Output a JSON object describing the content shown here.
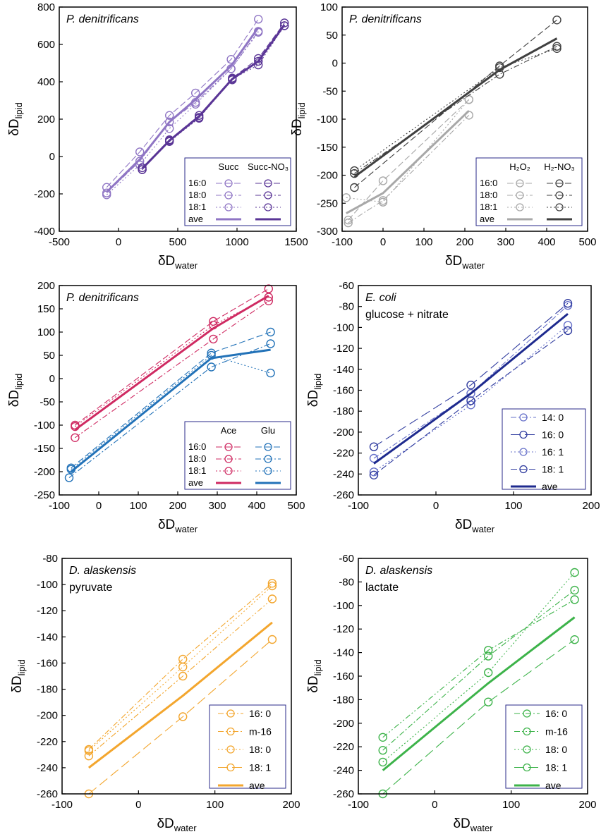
{
  "figure": {
    "xlabel_main": "δD",
    "xlabel_sub": "water",
    "ylabel_main": "δD",
    "ylabel_sub": "lipid"
  },
  "chart_data": [
    {
      "id": "p1",
      "type": "line",
      "title": "P. denitrificans",
      "subtitle": "",
      "xlim": [
        -500,
        1500
      ],
      "ylim": [
        -400,
        800
      ],
      "xticks": [
        -500,
        0,
        500,
        1000,
        1500
      ],
      "yticks": [
        -400,
        -200,
        0,
        200,
        400,
        600,
        800
      ],
      "legend": {
        "position": "bottom-right",
        "headers": [
          "Succ",
          "Succ-NO₃"
        ],
        "rows": [
          "16:0",
          "18:0",
          "18:1",
          "ave"
        ]
      },
      "series": [
        {
          "name": "16:0 Succ",
          "group": "Succ",
          "style": "dash",
          "color": "#8f75c4",
          "x": [
            -100,
            180,
            430,
            650,
            950,
            1180
          ],
          "y": [
            -165,
            25,
            220,
            340,
            520,
            735
          ]
        },
        {
          "name": "18:0 Succ",
          "group": "Succ",
          "style": "dashdot",
          "color": "#8f75c4",
          "x": [
            -100,
            180,
            430,
            650,
            950,
            1180
          ],
          "y": [
            -195,
            -25,
            185,
            290,
            470,
            670
          ]
        },
        {
          "name": "18:1 Succ",
          "group": "Succ",
          "style": "dot",
          "color": "#8f75c4",
          "x": [
            -100,
            180,
            430,
            650,
            950,
            1180
          ],
          "y": [
            -205,
            -45,
            150,
            280,
            470,
            665
          ]
        },
        {
          "name": "16:0 Succ-NO3",
          "group": "Succ-NO3",
          "style": "dash",
          "color": "#5a3596",
          "x": [
            200,
            430,
            680,
            960,
            1180,
            1400
          ],
          "y": [
            -60,
            90,
            220,
            420,
            525,
            715
          ]
        },
        {
          "name": "18:0 Succ-NO3",
          "group": "Succ-NO3",
          "style": "dashdot",
          "color": "#5a3596",
          "x": [
            200,
            430,
            680,
            960,
            1180,
            1400
          ],
          "y": [
            -70,
            85,
            210,
            410,
            510,
            700
          ]
        },
        {
          "name": "18:1 Succ-NO3",
          "group": "Succ-NO3",
          "style": "dot",
          "color": "#5a3596",
          "x": [
            200,
            430,
            680,
            960,
            1180,
            1400
          ],
          "y": [
            -70,
            80,
            205,
            415,
            490,
            700
          ]
        },
        {
          "name": "ave Succ",
          "group": "Succ",
          "style": "solid",
          "color": "#8f75c4",
          "x": [
            -100,
            180,
            430,
            650,
            950,
            1180
          ],
          "y": [
            -190,
            -15,
            185,
            305,
            485,
            690
          ]
        },
        {
          "name": "ave Succ-NO3",
          "group": "Succ-NO3",
          "style": "solid",
          "color": "#5a3596",
          "x": [
            200,
            430,
            680,
            960,
            1180,
            1400
          ],
          "y": [
            -65,
            85,
            215,
            415,
            510,
            705
          ]
        }
      ]
    },
    {
      "id": "p2",
      "type": "line",
      "title": "P. denitrificans",
      "subtitle": "",
      "xlim": [
        -100,
        500
      ],
      "ylim": [
        -300,
        100
      ],
      "xticks": [
        -100,
        0,
        100,
        200,
        300,
        400,
        500
      ],
      "yticks": [
        -300,
        -250,
        -200,
        -150,
        -100,
        -50,
        0,
        50,
        100
      ],
      "legend": {
        "position": "bottom-right",
        "headers": [
          "H₂O₂",
          "H₂-NO₃"
        ],
        "rows": [
          "16:0",
          "18:0",
          "18:1",
          "ave"
        ]
      },
      "series": [
        {
          "name": "16:0 H2O2",
          "group": "H2O2",
          "style": "dash",
          "color": "#a8a8a8",
          "x": [
            -85,
            0,
            210
          ],
          "y": [
            -280,
            -210,
            -65
          ]
        },
        {
          "name": "18:0 H2O2",
          "group": "H2O2",
          "style": "dashdot",
          "color": "#a8a8a8",
          "x": [
            -85,
            0,
            210
          ],
          "y": [
            -285,
            -245,
            -93
          ]
        },
        {
          "name": "18:1 H2O2",
          "group": "H2O2",
          "style": "dot",
          "color": "#a8a8a8",
          "x": [
            -90,
            0,
            210
          ],
          "y": [
            -240,
            -248,
            -65
          ]
        },
        {
          "name": "16:0 H2-NO3",
          "group": "H2-NO3",
          "style": "dash",
          "color": "#404040",
          "x": [
            -70,
            285,
            425
          ],
          "y": [
            -222,
            -5,
            77
          ]
        },
        {
          "name": "18:0 H2-NO3",
          "group": "H2-NO3",
          "style": "dashdot",
          "color": "#404040",
          "x": [
            -70,
            285,
            425
          ],
          "y": [
            -197,
            -20,
            30
          ]
        },
        {
          "name": "18:1 H2-NO3",
          "group": "H2-NO3",
          "style": "dot",
          "color": "#404040",
          "x": [
            -70,
            285,
            425
          ],
          "y": [
            -192,
            -8,
            26
          ]
        },
        {
          "name": "ave H2O2",
          "group": "H2O2",
          "style": "solid",
          "color": "#a8a8a8",
          "x": [
            -90,
            0,
            210
          ],
          "y": [
            -268,
            -232,
            -85
          ]
        },
        {
          "name": "ave H2-NO3",
          "group": "H2-NO3",
          "style": "solid",
          "color": "#404040",
          "x": [
            -70,
            285,
            425
          ],
          "y": [
            -203,
            -12,
            44
          ]
        }
      ]
    },
    {
      "id": "p3",
      "type": "line",
      "title": "P. denitrificans",
      "subtitle": "",
      "xlim": [
        -100,
        500
      ],
      "ylim": [
        -250,
        200
      ],
      "xticks": [
        -100,
        0,
        100,
        200,
        300,
        400,
        500
      ],
      "yticks": [
        -250,
        -200,
        -150,
        -100,
        -50,
        0,
        50,
        100,
        150,
        200
      ],
      "legend": {
        "position": "bottom-right",
        "headers": [
          "Ace",
          "Glu"
        ],
        "rows": [
          "16:0",
          "18:0",
          "18:1",
          "ave"
        ]
      },
      "series": [
        {
          "name": "16:0 Ace",
          "group": "Ace",
          "style": "dash",
          "color": "#cf2a62",
          "x": [
            -60,
            290,
            430
          ],
          "y": [
            -100,
            123,
            193
          ]
        },
        {
          "name": "18:0 Ace",
          "group": "Ace",
          "style": "dashdot",
          "color": "#cf2a62",
          "x": [
            -60,
            290,
            430
          ],
          "y": [
            -127,
            85,
            167
          ]
        },
        {
          "name": "18:1 Ace",
          "group": "Ace",
          "style": "dot",
          "color": "#cf2a62",
          "x": [
            -60,
            290,
            430
          ],
          "y": [
            -103,
            115,
            175
          ]
        },
        {
          "name": "16:0 Glu",
          "group": "Glu",
          "style": "dash",
          "color": "#2272b8",
          "x": [
            -70,
            285,
            435
          ],
          "y": [
            -192,
            55,
            100
          ]
        },
        {
          "name": "18:0 Glu",
          "group": "Glu",
          "style": "dashdot",
          "color": "#2272b8",
          "x": [
            -75,
            285,
            435
          ],
          "y": [
            -213,
            25,
            75
          ]
        },
        {
          "name": "18:1 Glu",
          "group": "Glu",
          "style": "dot",
          "color": "#2272b8",
          "x": [
            -70,
            285,
            435
          ],
          "y": [
            -195,
            50,
            12
          ]
        },
        {
          "name": "ave Ace",
          "group": "Ace",
          "style": "solid",
          "color": "#cf2a62",
          "x": [
            -60,
            290,
            430
          ],
          "y": [
            -110,
            108,
            178
          ]
        },
        {
          "name": "ave Glu",
          "group": "Glu",
          "style": "solid",
          "color": "#2272b8",
          "x": [
            -70,
            285,
            435
          ],
          "y": [
            -200,
            44,
            62
          ]
        }
      ]
    },
    {
      "id": "p4",
      "type": "line",
      "title": "E. coli",
      "subtitle": "glucose + nitrate",
      "xlim": [
        -100,
        200
      ],
      "ylim": [
        -260,
        -60
      ],
      "xticks": [
        -100,
        0,
        100,
        200
      ],
      "yticks": [
        -260,
        -240,
        -220,
        -200,
        -180,
        -160,
        -140,
        -120,
        -100,
        -80,
        -60
      ],
      "legend": {
        "position": "bottom-right",
        "headers": [],
        "rows": [
          "14: 0",
          "16: 0",
          "16: 1",
          "18: 1",
          "ave"
        ]
      },
      "series": [
        {
          "name": "14: 0",
          "style": "dashdot",
          "color": "#6670c9",
          "x": [
            -80,
            45,
            170
          ],
          "y": [
            -225,
            -163,
            -79
          ]
        },
        {
          "name": "16: 0",
          "style": "longdash",
          "color": "#2e3a9e",
          "x": [
            -80,
            45,
            170
          ],
          "y": [
            -214,
            -155,
            -77
          ]
        },
        {
          "name": "16: 1",
          "style": "dot",
          "color": "#6670c9",
          "x": [
            -80,
            45,
            170
          ],
          "y": [
            -238,
            -174,
            -98
          ]
        },
        {
          "name": "18: 1",
          "style": "dash",
          "color": "#2e3a9e",
          "x": [
            -80,
            45,
            170
          ],
          "y": [
            -241,
            -170,
            -103
          ]
        },
        {
          "name": "ave",
          "style": "solid",
          "color": "#1e2a8e",
          "x": [
            -80,
            45,
            170
          ],
          "y": [
            -230,
            -163,
            -87
          ]
        }
      ]
    },
    {
      "id": "p5",
      "type": "line",
      "title": "D. alaskensis",
      "subtitle": "pyruvate",
      "xlim": [
        -100,
        200
      ],
      "ylim": [
        -260,
        -80
      ],
      "xticks": [
        -100,
        0,
        100,
        200
      ],
      "yticks": [
        -260,
        -240,
        -220,
        -200,
        -180,
        -160,
        -140,
        -120,
        -100,
        -80
      ],
      "legend": {
        "position": "bottom-right",
        "headers": [],
        "rows": [
          "16: 0",
          "m-16",
          "18: 0",
          "18: 1",
          "ave"
        ]
      },
      "series": [
        {
          "name": "16: 0",
          "style": "dashdot",
          "color": "#f3a62e",
          "x": [
            -65,
            58,
            175
          ],
          "y": [
            -226,
            -157,
            -99
          ]
        },
        {
          "name": "m-16",
          "style": "dashdotdot",
          "color": "#f3a62e",
          "x": [
            -65,
            58,
            175
          ],
          "y": [
            -231,
            -170,
            -111
          ]
        },
        {
          "name": "18: 0",
          "style": "dot",
          "color": "#f3a62e",
          "x": [
            -65,
            58,
            175
          ],
          "y": [
            -227,
            -163,
            -101
          ]
        },
        {
          "name": "18: 1",
          "style": "longdash",
          "color": "#f3a62e",
          "x": [
            -65,
            58,
            175
          ],
          "y": [
            -260,
            -201,
            -142
          ]
        },
        {
          "name": "ave",
          "style": "solid",
          "color": "#f3a62e",
          "x": [
            -65,
            58,
            175
          ],
          "y": [
            -240,
            -185,
            -129
          ]
        }
      ]
    },
    {
      "id": "p6",
      "type": "line",
      "title": "D. alaskensis",
      "subtitle": "lactate",
      "xlim": [
        -100,
        200
      ],
      "ylim": [
        -260,
        -60
      ],
      "xticks": [
        -100,
        0,
        100,
        200
      ],
      "yticks": [
        -260,
        -240,
        -220,
        -200,
        -180,
        -160,
        -140,
        -120,
        -100,
        -80,
        -60
      ],
      "legend": {
        "position": "bottom-right",
        "headers": [],
        "rows": [
          "16: 0",
          "m-16",
          "18: 0",
          "18: 1",
          "ave"
        ]
      },
      "series": [
        {
          "name": "16: 0",
          "style": "dashdot",
          "color": "#3db34a",
          "x": [
            -68,
            70,
            183
          ],
          "y": [
            -223,
            -143,
            -87
          ]
        },
        {
          "name": "m-16",
          "style": "dashdotdot",
          "color": "#3db34a",
          "x": [
            -68,
            70,
            183
          ],
          "y": [
            -212,
            -138,
            -95
          ]
        },
        {
          "name": "18: 0",
          "style": "dot",
          "color": "#3db34a",
          "x": [
            -68,
            70,
            183
          ],
          "y": [
            -233,
            -157,
            -72
          ]
        },
        {
          "name": "18: 1",
          "style": "longdash",
          "color": "#3db34a",
          "x": [
            -68,
            70,
            183
          ],
          "y": [
            -260,
            -182,
            -129
          ]
        },
        {
          "name": "ave",
          "style": "solid",
          "color": "#3db34a",
          "x": [
            -68,
            70,
            183
          ],
          "y": [
            -240,
            -166,
            -110
          ]
        }
      ]
    }
  ]
}
